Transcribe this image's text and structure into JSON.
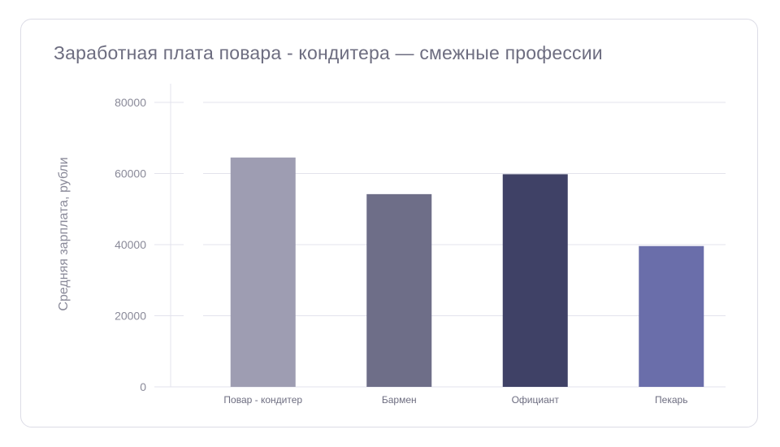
{
  "chart_data": {
    "type": "bar",
    "title": "Заработная плата повара - кондитера — смежные профессии",
    "xlabel": "",
    "ylabel": "Средняя зарплата, рубли",
    "categories": [
      "Повар - кондитер",
      "Бармен",
      "Официант",
      "Пекарь"
    ],
    "values": [
      64500,
      54200,
      59800,
      39600
    ],
    "colors": [
      "#9e9db2",
      "#6e6e88",
      "#3f4166",
      "#6a6eaa"
    ],
    "ylim": [
      0,
      80000
    ],
    "yticks": [
      "0",
      "20000",
      "40000",
      "60000",
      "80000"
    ],
    "grid": true,
    "legend": "none"
  }
}
